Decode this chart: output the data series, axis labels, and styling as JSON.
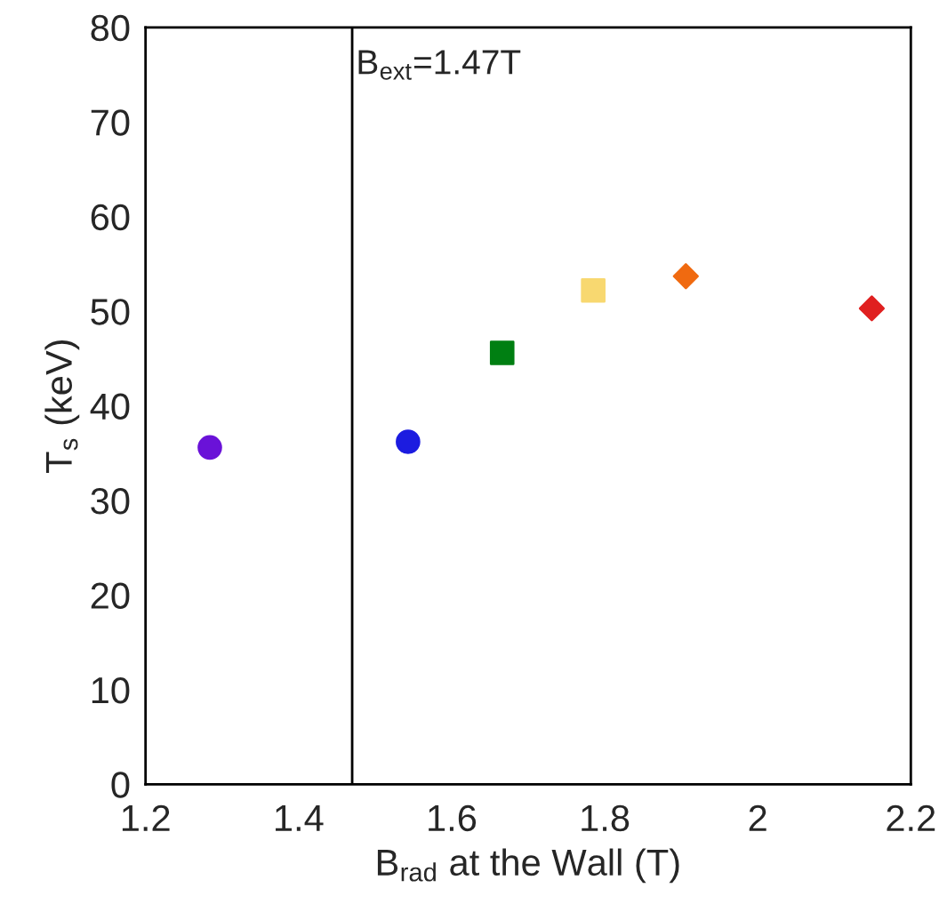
{
  "chart_data": {
    "type": "scatter",
    "xlabel": "B$_{rad}$ at the Wall (T)",
    "ylabel": "T$_{s}$ (keV)",
    "xlim": [
      1.2,
      2.2
    ],
    "xticks": [
      1.2,
      1.4,
      1.6,
      1.8,
      2,
      2.2
    ],
    "ylim": [
      0,
      80
    ],
    "yticks": [
      0,
      10,
      20,
      30,
      40,
      50,
      60,
      70,
      80
    ],
    "grid": false,
    "legend": false,
    "ref_lines": [
      {
        "axis": "x",
        "value": 1.47,
        "color": "#000000",
        "line_style": "solid"
      }
    ],
    "annotations": [
      {
        "text": "B$_{ext}$=1.47T",
        "x": 1.47,
        "y": 76
      }
    ],
    "series": [
      {
        "color": "#6a12d8",
        "marker": "circle",
        "x": [
          1.284
        ],
        "values": [
          35.6
        ]
      },
      {
        "color": "#1c1ce0",
        "marker": "circle",
        "x": [
          1.543
        ],
        "values": [
          36.2
        ]
      },
      {
        "color": "#007f12",
        "marker": "square",
        "x": [
          1.666
        ],
        "values": [
          45.6
        ]
      },
      {
        "color": "#f8d870",
        "marker": "square",
        "x": [
          1.785
        ],
        "values": [
          52.2
        ]
      },
      {
        "color": "#f06a10",
        "marker": "diamond",
        "x": [
          1.906
        ],
        "values": [
          53.7
        ]
      },
      {
        "color": "#e02020",
        "marker": "diamond",
        "x": [
          2.149
        ],
        "values": [
          50.3
        ]
      }
    ]
  }
}
